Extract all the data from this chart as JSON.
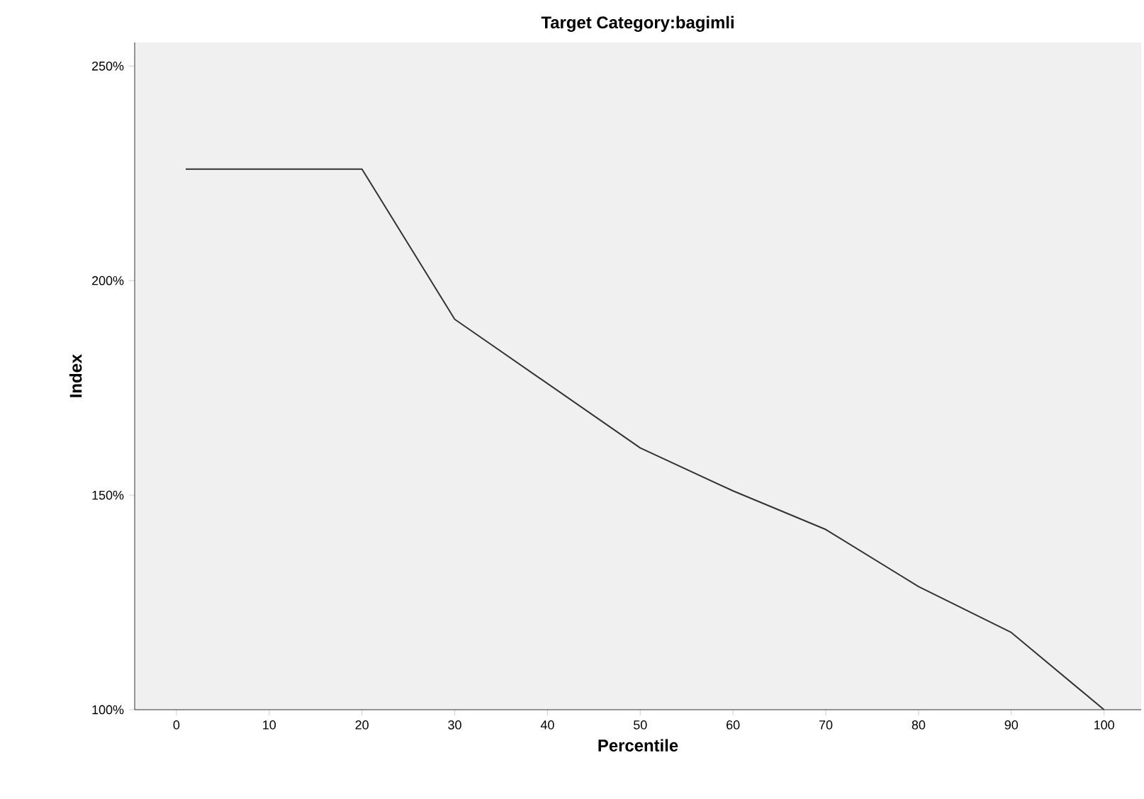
{
  "chart_data": {
    "type": "line",
    "title": "Target Category:bagimli",
    "xlabel": "Percentile",
    "ylabel": "Index",
    "x": [
      1,
      20,
      30,
      40,
      50,
      60,
      70,
      80,
      90,
      100
    ],
    "series": [
      {
        "color": "#333333",
        "values": [
          226,
          226,
          191,
          176,
          161,
          151,
          142,
          128.7,
          118,
          100
        ]
      }
    ],
    "xlim": [
      -4.5,
      104
    ],
    "ylim": [
      100,
      255.5
    ],
    "xticks": [
      0,
      10,
      20,
      30,
      40,
      50,
      60,
      70,
      80,
      90,
      100
    ],
    "yticks": [
      {
        "value": 100,
        "label": "100%"
      },
      {
        "value": 150,
        "label": "150%"
      },
      {
        "value": 200,
        "label": "200%"
      },
      {
        "value": 250,
        "label": "250%"
      }
    ],
    "grid": false,
    "legend": false,
    "marker": "none",
    "line_style": "solid"
  }
}
